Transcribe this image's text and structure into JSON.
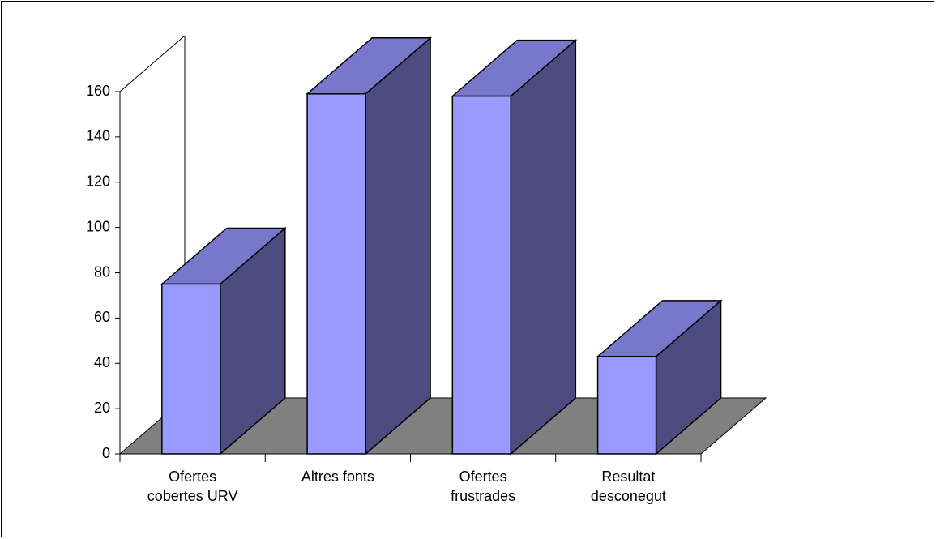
{
  "chart_data": {
    "type": "bar3d",
    "categories": [
      "Ofertes cobertes URV",
      "Altres fonts",
      "Ofertes frustrades",
      "Resultat desconegut"
    ],
    "values": [
      75,
      159,
      158,
      43
    ],
    "color": "#9999ff",
    "ylim": [
      0,
      160
    ],
    "yticks": [
      0,
      20,
      40,
      60,
      80,
      100,
      120,
      140,
      160
    ]
  }
}
